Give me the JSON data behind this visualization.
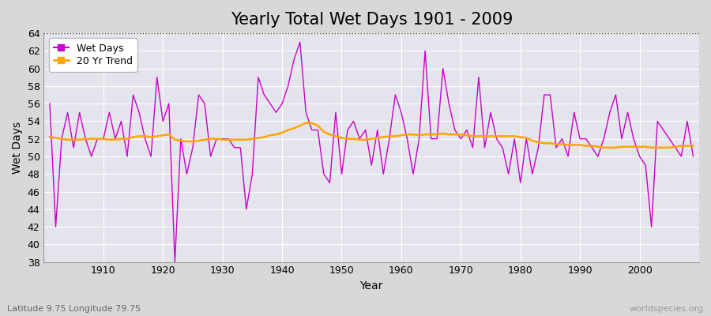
{
  "title": "Yearly Total Wet Days 1901 - 2009",
  "xlabel": "Year",
  "ylabel": "Wet Days",
  "subtitle": "Latitude 9.75 Longitude 79.75",
  "watermark": "worldspecies.org",
  "years": [
    1901,
    1902,
    1903,
    1904,
    1905,
    1906,
    1907,
    1908,
    1909,
    1910,
    1911,
    1912,
    1913,
    1914,
    1915,
    1916,
    1917,
    1918,
    1919,
    1920,
    1921,
    1922,
    1923,
    1924,
    1925,
    1926,
    1927,
    1928,
    1929,
    1930,
    1931,
    1932,
    1933,
    1934,
    1935,
    1936,
    1937,
    1938,
    1939,
    1940,
    1941,
    1942,
    1943,
    1944,
    1945,
    1946,
    1947,
    1948,
    1949,
    1950,
    1951,
    1952,
    1953,
    1954,
    1955,
    1956,
    1957,
    1958,
    1959,
    1960,
    1961,
    1962,
    1963,
    1964,
    1965,
    1966,
    1967,
    1968,
    1969,
    1970,
    1971,
    1972,
    1973,
    1974,
    1975,
    1976,
    1977,
    1978,
    1979,
    1980,
    1981,
    1982,
    1983,
    1984,
    1985,
    1986,
    1987,
    1988,
    1989,
    1990,
    1991,
    1992,
    1993,
    1994,
    1995,
    1996,
    1997,
    1998,
    1999,
    2000,
    2001,
    2002,
    2003,
    2004,
    2005,
    2006,
    2007,
    2008,
    2009
  ],
  "wet_days": [
    56,
    42,
    52,
    55,
    51,
    55,
    52,
    50,
    52,
    52,
    55,
    52,
    54,
    50,
    57,
    55,
    52,
    50,
    59,
    54,
    56,
    38,
    52,
    48,
    51,
    57,
    56,
    50,
    52,
    52,
    52,
    51,
    51,
    44,
    48,
    59,
    57,
    56,
    55,
    56,
    58,
    61,
    63,
    55,
    53,
    53,
    48,
    47,
    55,
    48,
    53,
    54,
    52,
    53,
    49,
    53,
    48,
    52,
    57,
    55,
    52,
    48,
    52,
    62,
    52,
    52,
    60,
    56,
    53,
    52,
    53,
    51,
    59,
    51,
    55,
    52,
    51,
    48,
    52,
    47,
    52,
    48,
    51,
    57,
    57,
    51,
    52,
    50,
    55,
    52,
    52,
    51,
    50,
    52,
    55,
    57,
    52,
    55,
    52,
    50,
    49,
    42,
    54,
    53,
    52,
    51,
    50,
    54,
    50
  ],
  "trend": [
    52.2,
    52.1,
    52.0,
    51.9,
    51.9,
    51.9,
    52.0,
    52.0,
    52.0,
    52.0,
    51.9,
    51.9,
    52.0,
    52.0,
    52.2,
    52.3,
    52.3,
    52.2,
    52.3,
    52.4,
    52.5,
    51.9,
    51.8,
    51.7,
    51.7,
    51.8,
    51.9,
    52.0,
    52.0,
    51.9,
    51.9,
    51.9,
    51.9,
    51.9,
    52.0,
    52.1,
    52.2,
    52.4,
    52.5,
    52.7,
    53.0,
    53.2,
    53.5,
    53.8,
    53.8,
    53.5,
    52.8,
    52.5,
    52.3,
    52.1,
    52.0,
    52.0,
    51.9,
    51.9,
    52.0,
    52.1,
    52.2,
    52.3,
    52.3,
    52.4,
    52.5,
    52.5,
    52.4,
    52.5,
    52.5,
    52.5,
    52.6,
    52.5,
    52.5,
    52.5,
    52.4,
    52.3,
    52.3,
    52.3,
    52.3,
    52.3,
    52.3,
    52.3,
    52.3,
    52.2,
    52.1,
    51.8,
    51.6,
    51.5,
    51.5,
    51.4,
    51.4,
    51.3,
    51.3,
    51.3,
    51.2,
    51.2,
    51.1,
    51.0,
    51.0,
    51.0,
    51.1,
    51.1,
    51.1,
    51.1,
    51.1,
    51.0,
    51.0,
    51.0,
    51.0,
    51.1,
    51.2,
    51.2,
    51.2
  ],
  "ylim": [
    38,
    64
  ],
  "yticks": [
    38,
    40,
    42,
    44,
    46,
    48,
    50,
    52,
    54,
    56,
    58,
    60,
    62,
    64
  ],
  "xlim": [
    1900,
    2010
  ],
  "xticks": [
    1910,
    1920,
    1930,
    1940,
    1950,
    1960,
    1970,
    1980,
    1990,
    2000
  ],
  "wet_days_color": "#cc00cc",
  "trend_color": "#FFA500",
  "bg_color": "#d8d8d8",
  "plot_bg_color": "#e4e4ec",
  "grid_color": "#ffffff",
  "dotted_line_y": 64,
  "title_fontsize": 15,
  "axis_fontsize": 10,
  "tick_fontsize": 9,
  "legend_fontsize": 9
}
